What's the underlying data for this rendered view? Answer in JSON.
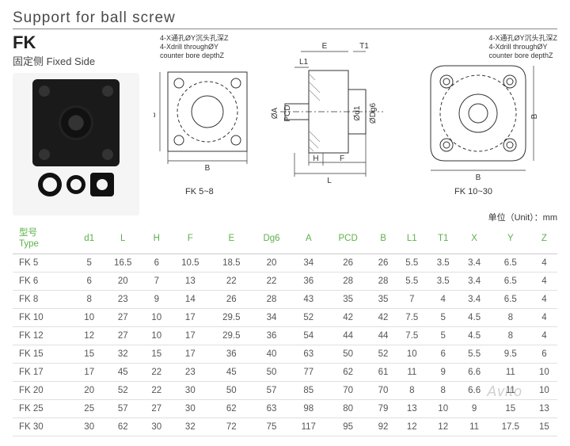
{
  "title": "Support for ball screw",
  "model": "FK",
  "subtext_cn": "固定侧",
  "subtext_en": "Fixed Side",
  "note_left_cn": "4-X通孔ØY沉头孔深Z",
  "note_left_en1": "4-Xdrill throughØY",
  "note_left_en2": "counter bore depthZ",
  "note_right_cn": "4-X通孔ØY沉头孔深Z",
  "note_right_en1": "4-Xdrill throughØY",
  "note_right_en2": "counter bore depthZ",
  "range1": "FK 5~8",
  "range2": "FK 10~30",
  "unit_cn": "单位（Unit）：",
  "unit_val": "mm",
  "dim": {
    "E": "E",
    "T1": "T1",
    "L1": "L1",
    "A": "ØA",
    "PCD": "PCD",
    "d1": "Ød1",
    "Dg6": "ØDg6",
    "H": "H",
    "F": "F",
    "L": "L",
    "B": "B"
  },
  "headers": {
    "type_cn": "型号",
    "type_en": "Type",
    "d1": "d1",
    "L": "L",
    "H": "H",
    "F": "F",
    "E": "E",
    "Dg6": "Dg6",
    "A": "A",
    "PCD": "PCD",
    "B": "B",
    "L1": "L1",
    "T1": "T1",
    "X": "X",
    "Y": "Y",
    "Z": "Z"
  },
  "rows": [
    {
      "t": "FK 5",
      "d1": "5",
      "L": "16.5",
      "H": "6",
      "F": "10.5",
      "E": "18.5",
      "Dg6": "20",
      "A": "34",
      "PCD": "26",
      "B": "26",
      "L1": "5.5",
      "T1": "3.5",
      "X": "3.4",
      "Y": "6.5",
      "Z": "4"
    },
    {
      "t": "FK 6",
      "d1": "6",
      "L": "20",
      "H": "7",
      "F": "13",
      "E": "22",
      "Dg6": "22",
      "A": "36",
      "PCD": "28",
      "B": "28",
      "L1": "5.5",
      "T1": "3.5",
      "X": "3.4",
      "Y": "6.5",
      "Z": "4"
    },
    {
      "t": "FK 8",
      "d1": "8",
      "L": "23",
      "H": "9",
      "F": "14",
      "E": "26",
      "Dg6": "28",
      "A": "43",
      "PCD": "35",
      "B": "35",
      "L1": "7",
      "T1": "4",
      "X": "3.4",
      "Y": "6.5",
      "Z": "4"
    },
    {
      "t": "FK 10",
      "d1": "10",
      "L": "27",
      "H": "10",
      "F": "17",
      "E": "29.5",
      "Dg6": "34",
      "A": "52",
      "PCD": "42",
      "B": "42",
      "L1": "7.5",
      "T1": "5",
      "X": "4.5",
      "Y": "8",
      "Z": "4"
    },
    {
      "t": "FK 12",
      "d1": "12",
      "L": "27",
      "H": "10",
      "F": "17",
      "E": "29.5",
      "Dg6": "36",
      "A": "54",
      "PCD": "44",
      "B": "44",
      "L1": "7.5",
      "T1": "5",
      "X": "4.5",
      "Y": "8",
      "Z": "4"
    },
    {
      "t": "FK 15",
      "d1": "15",
      "L": "32",
      "H": "15",
      "F": "17",
      "E": "36",
      "Dg6": "40",
      "A": "63",
      "PCD": "50",
      "B": "52",
      "L1": "10",
      "T1": "6",
      "X": "5.5",
      "Y": "9.5",
      "Z": "6"
    },
    {
      "t": "FK 17",
      "d1": "17",
      "L": "45",
      "H": "22",
      "F": "23",
      "E": "45",
      "Dg6": "50",
      "A": "77",
      "PCD": "62",
      "B": "61",
      "L1": "11",
      "T1": "9",
      "X": "6.6",
      "Y": "11",
      "Z": "10"
    },
    {
      "t": "FK 20",
      "d1": "20",
      "L": "52",
      "H": "22",
      "F": "30",
      "E": "50",
      "Dg6": "57",
      "A": "85",
      "PCD": "70",
      "B": "70",
      "L1": "8",
      "T1": "8",
      "X": "6.6",
      "Y": "11",
      "Z": "10"
    },
    {
      "t": "FK 25",
      "d1": "25",
      "L": "57",
      "H": "27",
      "F": "30",
      "E": "62",
      "Dg6": "63",
      "A": "98",
      "PCD": "80",
      "B": "79",
      "L1": "13",
      "T1": "10",
      "X": "9",
      "Y": "15",
      "Z": "13"
    },
    {
      "t": "FK 30",
      "d1": "30",
      "L": "62",
      "H": "30",
      "F": "32",
      "E": "72",
      "Dg6": "75",
      "A": "117",
      "PCD": "95",
      "B": "92",
      "L1": "12",
      "T1": "12",
      "X": "11",
      "Y": "17.5",
      "Z": "15"
    }
  ],
  "watermark": "Avito",
  "colors": {
    "header": "#5eb14a",
    "line": "#333333",
    "hatch": "#888888"
  }
}
